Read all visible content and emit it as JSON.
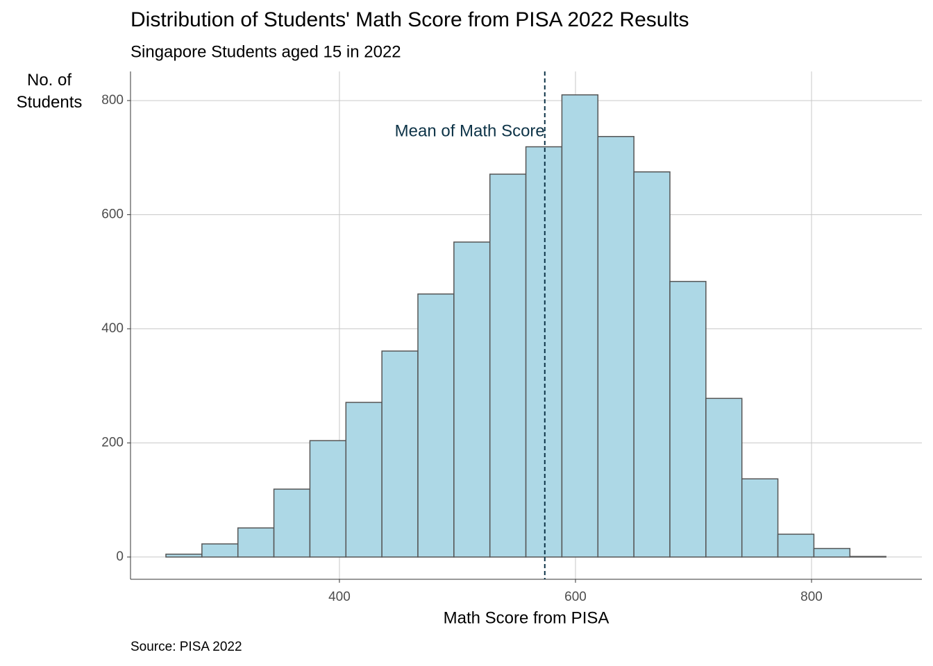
{
  "chart_data": {
    "type": "histogram",
    "title": "Distribution of Students' Math Score from PISA 2022 Results",
    "subtitle": "Singapore Students aged 15 in 2022",
    "x_label": "Math Score from PISA",
    "y_label": "No. of\nStudents",
    "caption": "Source: PISA 2022",
    "bins": [
      253,
      283.5,
      314,
      344.5,
      375,
      405.5,
      436,
      466.5,
      497,
      527.5,
      558,
      588.5,
      619,
      649.5,
      680,
      710.5,
      741,
      771.5,
      802,
      832.5,
      863
    ],
    "counts": [
      5,
      23,
      51,
      119,
      204,
      271,
      361,
      461,
      552,
      671,
      719,
      810,
      737,
      675,
      483,
      278,
      137,
      40,
      15,
      1
    ],
    "color": "#add8e6",
    "edge_color": "#555555",
    "mean": 574,
    "annotation": "Mean of Math Score",
    "mean_color": "#0d3347",
    "xlim": [
      223,
      893.5
    ],
    "ylim": [
      -39,
      851
    ],
    "xticks": [
      400,
      600,
      800
    ],
    "yticks": [
      0,
      200,
      400,
      600,
      800
    ],
    "grid": true
  }
}
